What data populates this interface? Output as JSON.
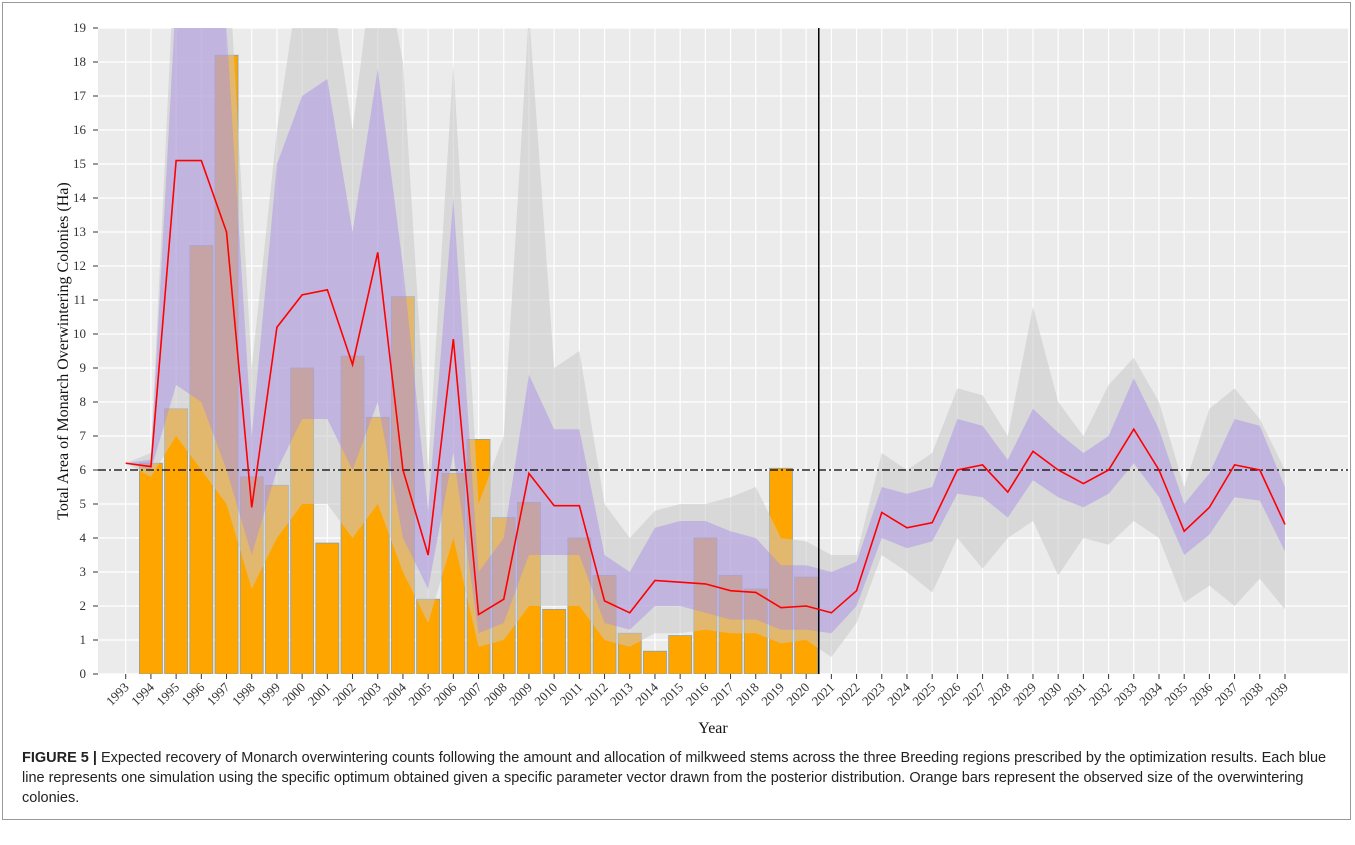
{
  "chart_data": {
    "type": "bar-line",
    "y_label": "Total Area of Monarch Overwintering Colonies (Ha)",
    "x_label": "Year",
    "x": [
      1993,
      1994,
      1995,
      1996,
      1997,
      1998,
      1999,
      2000,
      2001,
      2002,
      2003,
      2004,
      2005,
      2006,
      2007,
      2008,
      2009,
      2010,
      2011,
      2012,
      2013,
      2014,
      2015,
      2016,
      2017,
      2018,
      2019,
      2020,
      2021,
      2022,
      2023,
      2024,
      2025,
      2026,
      2027,
      2028,
      2029,
      2030,
      2031,
      2032,
      2033,
      2034,
      2035,
      2036,
      2037,
      2038,
      2039
    ],
    "xlim": [
      1991.9,
      2041.5
    ],
    "xticks": [
      1993,
      1994,
      1995,
      1996,
      1997,
      1998,
      1999,
      2000,
      2001,
      2002,
      2003,
      2004,
      2005,
      2006,
      2007,
      2008,
      2009,
      2010,
      2011,
      2012,
      2013,
      2014,
      2015,
      2016,
      2017,
      2018,
      2019,
      2020,
      2021,
      2022,
      2023,
      2024,
      2025,
      2026,
      2027,
      2028,
      2029,
      2030,
      2031,
      2032,
      2033,
      2034,
      2035,
      2036,
      2037,
      2038,
      2039
    ],
    "ylim": [
      0,
      19
    ],
    "yticks": [
      0,
      1,
      2,
      3,
      4,
      5,
      6,
      7,
      8,
      9,
      10,
      11,
      12,
      13,
      14,
      15,
      16,
      17,
      18,
      19
    ],
    "grid": true,
    "bars": {
      "color": "#ffa500",
      "values": [
        null,
        6.2,
        7.8,
        12.6,
        18.2,
        5.8,
        5.55,
        9.0,
        3.85,
        9.35,
        7.55,
        11.1,
        2.2,
        5.9,
        6.9,
        4.6,
        5.05,
        1.9,
        4.0,
        2.9,
        1.2,
        0.67,
        1.13,
        4.0,
        2.9,
        2.5,
        6.05,
        2.85,
        null,
        null,
        null,
        null,
        null,
        null,
        null,
        null,
        null,
        null,
        null,
        null,
        null,
        null,
        null,
        null,
        null,
        null,
        null
      ]
    },
    "bands": [
      {
        "color": "#c8c8c8",
        "lower": [
          6.2,
          5.8,
          7,
          6,
          5,
          2.5,
          4,
          5,
          5,
          4,
          5,
          3,
          1.5,
          4,
          0.8,
          1,
          2,
          2,
          2,
          1,
          0.8,
          1.2,
          1.2,
          1.3,
          1.2,
          1.2,
          0.9,
          1,
          0.5,
          1.5,
          3.5,
          3,
          2.4,
          4,
          3.1,
          4,
          4.5,
          2.9,
          4,
          3.8,
          4.5,
          4,
          2.1,
          2.6,
          2,
          2.8,
          1.9
        ],
        "upper": [
          6.2,
          6.5,
          22,
          22,
          22,
          9,
          16,
          21,
          21,
          16,
          22,
          18,
          6,
          18,
          5,
          7,
          19.5,
          9,
          9.5,
          5,
          4,
          4.8,
          5,
          5,
          5.2,
          5.5,
          4,
          3.9,
          3.5,
          3.5,
          6.5,
          6,
          6.5,
          8.4,
          8.2,
          7,
          10.8,
          8,
          7,
          8.5,
          9.3,
          8,
          5.5,
          7.8,
          8.4,
          7.5,
          6
        ]
      },
      {
        "color": "#a78be8",
        "lower": [
          6.2,
          6,
          8.5,
          8,
          6,
          3.5,
          6,
          7.5,
          7.5,
          6,
          8,
          4,
          2.5,
          6.5,
          1.2,
          1.5,
          3.5,
          3.5,
          3.5,
          1.5,
          1.3,
          2,
          2,
          1.8,
          1.6,
          1.6,
          1.3,
          1.3,
          1.2,
          2,
          4,
          3.7,
          3.9,
          5.3,
          5.2,
          4.6,
          5.7,
          5.2,
          4.9,
          5.3,
          6.2,
          5.2,
          3.5,
          4.1,
          5.2,
          5.1,
          3.6
        ],
        "upper": [
          6.2,
          6.3,
          20,
          20,
          19,
          7,
          15,
          17,
          17.5,
          13,
          17.8,
          12,
          4.8,
          14,
          3,
          4,
          8.8,
          7.2,
          7.2,
          3.5,
          3,
          4.3,
          4.5,
          4.5,
          4.2,
          4,
          3.2,
          3.2,
          3,
          3.3,
          5.5,
          5.3,
          5.5,
          7.5,
          7.3,
          6.3,
          7.8,
          7.1,
          6.5,
          7,
          8.7,
          7.2,
          5,
          5.9,
          7.5,
          7.3,
          5.5
        ]
      }
    ],
    "line": {
      "color": "#ff0000",
      "values": [
        6.2,
        6.1,
        15.1,
        15.1,
        13.0,
        4.9,
        10.2,
        11.15,
        11.3,
        9.1,
        12.4,
        6.0,
        3.5,
        9.85,
        1.75,
        2.2,
        5.9,
        4.95,
        4.95,
        2.15,
        1.8,
        2.75,
        2.7,
        2.65,
        2.45,
        2.4,
        1.95,
        2.0,
        1.8,
        2.45,
        4.75,
        4.3,
        4.45,
        6.0,
        6.15,
        5.35,
        6.55,
        6.0,
        5.6,
        6.0,
        7.2,
        6.0,
        4.2,
        4.9,
        6.15,
        6.0,
        4.4
      ]
    },
    "hline": 6,
    "vline": 2020.5
  },
  "caption": {
    "label": "FIGURE 5 |",
    "text": "Expected recovery of Monarch overwintering counts following the amount and allocation of milkweed stems across the three Breeding regions prescribed by the optimization results. Each blue line represents one simulation using the specific optimum obtained given a specific parameter vector drawn from the posterior distribution. Orange bars represent the observed size of the overwintering colonies."
  }
}
